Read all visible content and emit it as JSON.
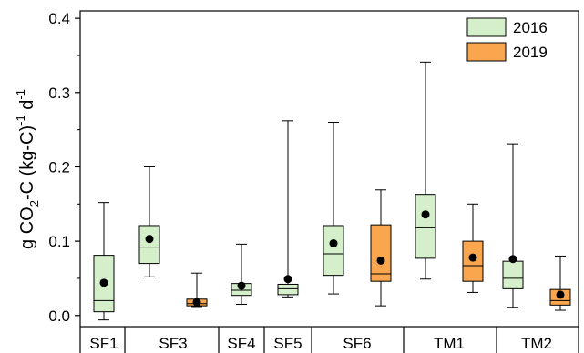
{
  "chart_data": {
    "type": "box",
    "ylabel_parts": {
      "a": "g CO",
      "sub": "2",
      "b": "-C (kg-C)",
      "sup1": "-1",
      "c": " d",
      "sup2": "-1"
    },
    "ylim": [
      -0.015,
      0.41
    ],
    "yticks": [
      "0.0",
      "0.1",
      "0.2",
      "0.3",
      "0.4"
    ],
    "ytick_values": [
      0.0,
      0.1,
      0.2,
      0.3,
      0.4
    ],
    "categories": [
      "SF1",
      "SF3",
      "SF4",
      "SF5",
      "SF6",
      "TM1",
      "TM2"
    ],
    "series": [
      {
        "name": "2016",
        "color": "#d5efcb",
        "boxes": [
          {
            "category": "SF1",
            "min": -0.006,
            "q1": 0.005,
            "median": 0.02,
            "q3": 0.081,
            "max": 0.152,
            "mean": 0.044
          },
          {
            "category": "SF3",
            "min": 0.052,
            "q1": 0.07,
            "median": 0.092,
            "q3": 0.121,
            "max": 0.2,
            "mean": 0.103
          },
          {
            "category": "SF4",
            "min": 0.015,
            "q1": 0.027,
            "median": 0.034,
            "q3": 0.043,
            "max": 0.096,
            "mean": 0.04
          },
          {
            "category": "SF5",
            "min": 0.025,
            "q1": 0.028,
            "median": 0.036,
            "q3": 0.042,
            "max": 0.262,
            "mean": 0.049
          },
          {
            "category": "SF6",
            "min": 0.029,
            "q1": 0.054,
            "median": 0.083,
            "q3": 0.121,
            "max": 0.26,
            "mean": 0.097
          },
          {
            "category": "TM1",
            "min": 0.049,
            "q1": 0.077,
            "median": 0.118,
            "q3": 0.163,
            "max": 0.341,
            "mean": 0.136
          },
          {
            "category": "TM2",
            "min": 0.011,
            "q1": 0.036,
            "median": 0.05,
            "q3": 0.073,
            "max": 0.231,
            "mean": 0.076
          }
        ]
      },
      {
        "name": "2019",
        "color": "#f9a64f",
        "boxes": [
          {
            "category": "SF3",
            "min": 0.012,
            "q1": 0.013,
            "median": 0.016,
            "q3": 0.022,
            "max": 0.057,
            "mean": 0.018
          },
          {
            "category": "SF6",
            "min": 0.013,
            "q1": 0.046,
            "median": 0.056,
            "q3": 0.122,
            "max": 0.169,
            "mean": 0.074
          },
          {
            "category": "TM1",
            "min": 0.031,
            "q1": 0.046,
            "median": 0.067,
            "q3": 0.1,
            "max": 0.15,
            "mean": 0.078
          },
          {
            "category": "TM2",
            "min": 0.007,
            "q1": 0.014,
            "median": 0.02,
            "q3": 0.035,
            "max": 0.08,
            "mean": 0.028
          }
        ]
      }
    ],
    "legend": [
      "2016",
      "2019"
    ],
    "legend_position": "top-right",
    "grid": false
  }
}
